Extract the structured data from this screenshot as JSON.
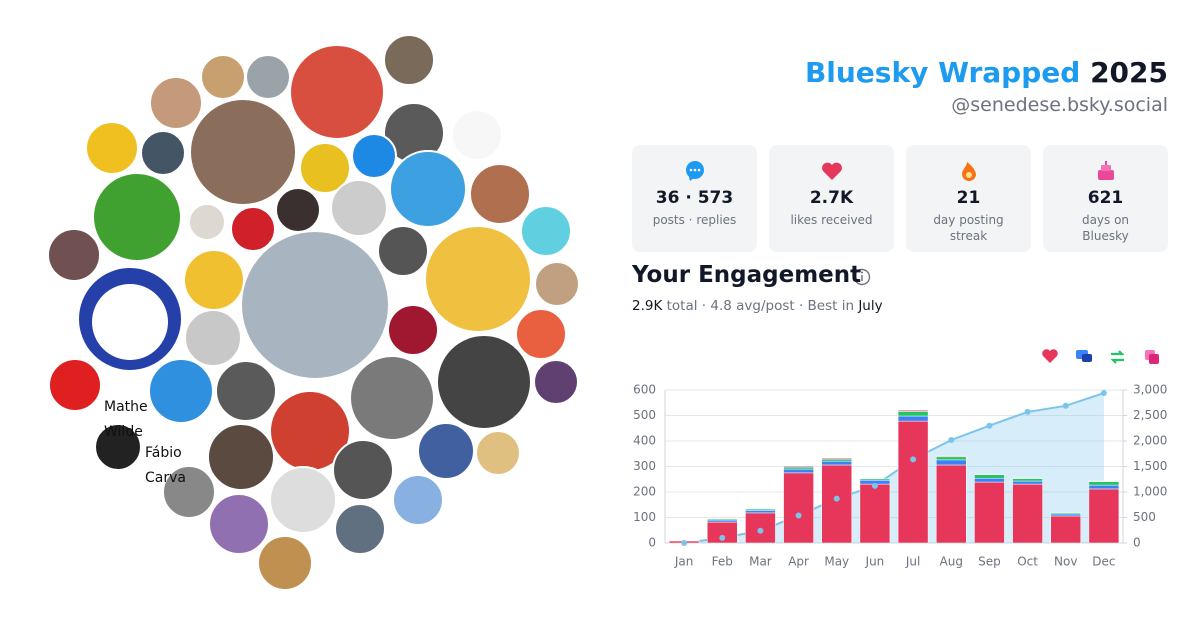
{
  "header": {
    "title_brand": "Bluesky Wrapped",
    "title_year": "2025",
    "handle": "@senedese.bsky.social"
  },
  "stats": [
    {
      "value": "36 · 573",
      "label": "posts · replies"
    },
    {
      "value": "2.7K",
      "label": "likes received"
    },
    {
      "value": "21",
      "label": "day posting streak"
    },
    {
      "value": "621",
      "label": "days on Bluesky"
    }
  ],
  "engagement": {
    "heading": "Your Engagement",
    "total": "2.9K",
    "summary": "total · 4.8 avg/post · Best in",
    "best_month": "July"
  },
  "broken_avatars": [
    [
      "Mathe",
      "Wilde"
    ],
    [
      "Fábio",
      "Carva"
    ]
  ],
  "chart_data": {
    "type": "stacked-bar-line",
    "categories": [
      "Jan",
      "Feb",
      "Mar",
      "Apr",
      "May",
      "Jun",
      "Jul",
      "Aug",
      "Sep",
      "Oct",
      "Nov",
      "Dec"
    ],
    "series": [
      {
        "color": "#e6375a",
        "values": [
          8,
          82,
          118,
          275,
          306,
          231,
          478,
          306,
          239,
          231,
          106,
          212
        ]
      },
      {
        "color": "#3b82f6",
        "values": [
          2,
          8,
          10,
          15,
          15,
          15,
          20,
          20,
          15,
          12,
          8,
          15
        ]
      },
      {
        "color": "#22c55e",
        "values": [
          0,
          4,
          5,
          8,
          8,
          5,
          18,
          12,
          14,
          10,
          4,
          14
        ]
      },
      {
        "color": "#ec4899",
        "values": [
          0,
          0,
          0,
          4,
          4,
          0,
          5,
          3,
          2,
          2,
          0,
          2
        ]
      },
      {
        "color": "#7cc4ea",
        "axis": "y2",
        "values": [
          0,
          100,
          240,
          540,
          870,
          1120,
          1640,
          2020,
          2300,
          2570,
          2690,
          2940
        ]
      }
    ],
    "ylim": [
      0,
      600
    ],
    "yticks": [
      0,
      100,
      200,
      300,
      400,
      500,
      600
    ],
    "y2lim": [
      0,
      3000
    ],
    "y2ticks": [
      0,
      500,
      {
        "value": 1000,
        "label": "1,000"
      },
      {
        "value": 1500,
        "label": "1,500"
      },
      {
        "value": 2000,
        "label": "2,000"
      },
      {
        "value": 2500,
        "label": "2,500"
      },
      {
        "value": 3000,
        "label": "3,000"
      }
    ],
    "grid": true
  }
}
